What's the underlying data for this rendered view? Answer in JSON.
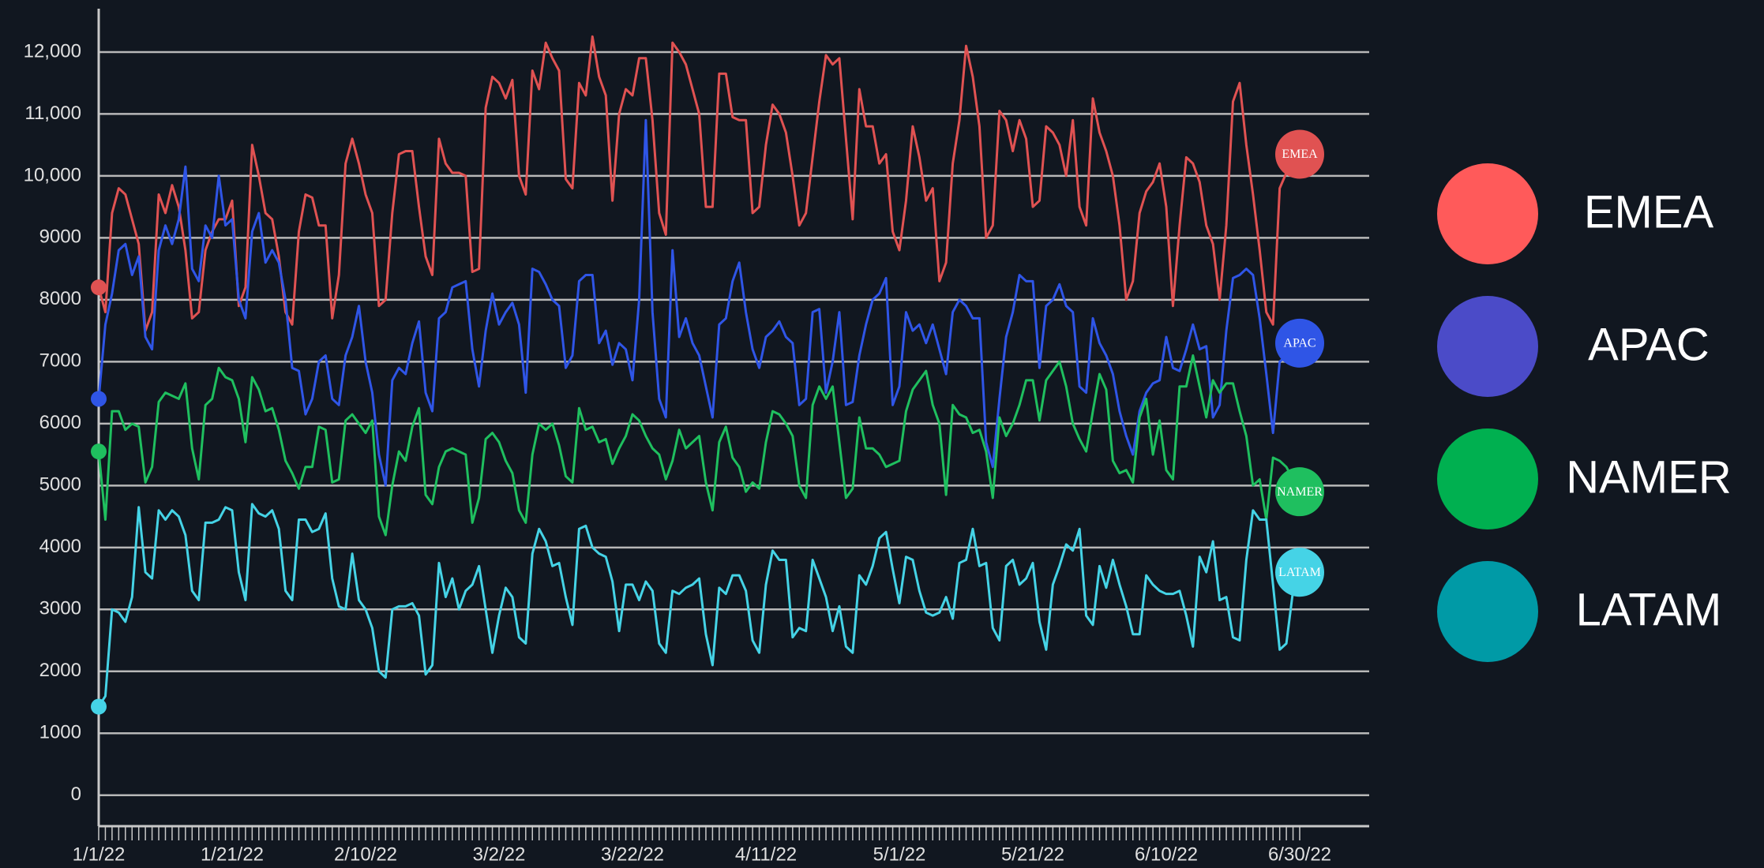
{
  "chart_data": {
    "type": "line",
    "x": [
      "1/1/22",
      "1/2/22",
      "1/3/22",
      "1/4/22",
      "1/5/22",
      "1/6/22",
      "1/7/22",
      "1/8/22",
      "1/9/22",
      "1/10/22",
      "1/11/22",
      "1/12/22",
      "1/13/22",
      "1/14/22",
      "1/15/22",
      "1/16/22",
      "1/17/22",
      "1/18/22",
      "1/19/22",
      "1/20/22",
      "1/21/22",
      "1/22/22",
      "1/23/22",
      "1/24/22",
      "1/25/22",
      "1/26/22",
      "1/27/22",
      "1/28/22",
      "1/29/22",
      "1/30/22",
      "1/31/22",
      "2/1/22",
      "2/2/22",
      "2/3/22",
      "2/4/22",
      "2/5/22",
      "2/6/22",
      "2/7/22",
      "2/8/22",
      "2/9/22",
      "2/10/22",
      "2/11/22",
      "2/12/22",
      "2/13/22",
      "2/14/22",
      "2/15/22",
      "2/16/22",
      "2/17/22",
      "2/18/22",
      "2/19/22",
      "2/20/22",
      "2/21/22",
      "2/22/22",
      "2/23/22",
      "2/24/22",
      "2/25/22",
      "2/26/22",
      "2/27/22",
      "2/28/22",
      "3/1/22",
      "3/2/22",
      "3/3/22",
      "3/4/22",
      "3/5/22",
      "3/6/22",
      "3/7/22",
      "3/8/22",
      "3/9/22",
      "3/10/22",
      "3/11/22",
      "3/12/22",
      "3/13/22",
      "3/14/22",
      "3/15/22",
      "3/16/22",
      "3/17/22",
      "3/18/22",
      "3/19/22",
      "3/20/22",
      "3/21/22",
      "3/22/22",
      "3/23/22",
      "3/24/22",
      "3/25/22",
      "3/26/22",
      "3/27/22",
      "3/28/22",
      "3/29/22",
      "3/30/22",
      "3/31/22",
      "4/1/22",
      "4/2/22",
      "4/3/22",
      "4/4/22",
      "4/5/22",
      "4/6/22",
      "4/7/22",
      "4/8/22",
      "4/9/22",
      "4/10/22",
      "4/11/22",
      "4/12/22",
      "4/13/22",
      "4/14/22",
      "4/15/22",
      "4/16/22",
      "4/17/22",
      "4/18/22",
      "4/19/22",
      "4/20/22",
      "4/21/22",
      "4/22/22",
      "4/23/22",
      "4/24/22",
      "4/25/22",
      "4/26/22",
      "4/27/22",
      "4/28/22",
      "4/29/22",
      "4/30/22",
      "5/1/22",
      "5/2/22",
      "5/3/22",
      "5/4/22",
      "5/5/22",
      "5/6/22",
      "5/7/22",
      "5/8/22",
      "5/9/22",
      "5/10/22",
      "5/11/22",
      "5/12/22",
      "5/13/22",
      "5/14/22",
      "5/15/22",
      "5/16/22",
      "5/17/22",
      "5/18/22",
      "5/19/22",
      "5/20/22",
      "5/21/22",
      "5/22/22",
      "5/23/22",
      "5/24/22",
      "5/25/22",
      "5/26/22",
      "5/27/22",
      "5/28/22",
      "5/29/22",
      "5/30/22",
      "5/31/22",
      "6/1/22",
      "6/2/22",
      "6/3/22",
      "6/4/22",
      "6/5/22",
      "6/6/22",
      "6/7/22",
      "6/8/22",
      "6/9/22",
      "6/10/22",
      "6/11/22",
      "6/12/22",
      "6/13/22",
      "6/14/22",
      "6/15/22",
      "6/16/22",
      "6/17/22",
      "6/18/22",
      "6/19/22",
      "6/20/22",
      "6/21/22",
      "6/22/22",
      "6/23/22",
      "6/24/22",
      "6/25/22",
      "6/26/22",
      "6/27/22",
      "6/28/22",
      "6/29/22",
      "6/30/22"
    ],
    "xticks": [
      "1/1/22",
      "1/21/22",
      "2/10/22",
      "3/2/22",
      "3/22/22",
      "4/11/22",
      "5/1/22",
      "5/21/22",
      "6/10/22",
      "6/30/22"
    ],
    "ylim": [
      -500,
      12700
    ],
    "yticks": [
      0,
      1000,
      2000,
      3000,
      4000,
      5000,
      6000,
      7000,
      8000,
      9000,
      {
        "value": 10000,
        "label": "10,000"
      },
      {
        "value": 11000,
        "label": "11,000"
      },
      {
        "value": 12000,
        "label": "12,000"
      }
    ],
    "grid": true,
    "legend": "right",
    "series": [
      {
        "name": "EMEA",
        "color": "#e05252",
        "legend_color": "#ff5a5a",
        "values": [
          8200,
          7800,
          9400,
          9800,
          9700,
          9300,
          8900,
          7500,
          7800,
          9700,
          9400,
          9850,
          9500,
          8800,
          7700,
          7800,
          8800,
          9100,
          9300,
          9300,
          9600,
          7900,
          8200,
          10500,
          10000,
          9400,
          9300,
          8700,
          7800,
          7600,
          9100,
          9700,
          9650,
          9200,
          9200,
          7700,
          8400,
          10200,
          10600,
          10200,
          9700,
          9400,
          7900,
          8000,
          9400,
          10350,
          10400,
          10400,
          9500,
          8700,
          8400,
          10600,
          10200,
          10050,
          10050,
          10000,
          8450,
          8500,
          11100,
          11600,
          11500,
          11250,
          11550,
          10000,
          9700,
          11700,
          11400,
          12150,
          11900,
          11700,
          9950,
          9800,
          11500,
          11300,
          12250,
          11600,
          11300,
          9600,
          11000,
          11400,
          11300,
          11900,
          11900,
          10900,
          9400,
          9050,
          12150,
          12000,
          11800,
          11400,
          11000,
          9500,
          9500,
          11650,
          11650,
          10950,
          10900,
          10900,
          9400,
          9500,
          10500,
          11150,
          11000,
          10700,
          10000,
          9200,
          9400,
          10300,
          11200,
          11950,
          11800,
          11900,
          10600,
          9300,
          11400,
          10800,
          10800,
          10200,
          10350,
          9100,
          8800,
          9600,
          10800,
          10300,
          9600,
          9800,
          8300,
          8600,
          10200,
          10900,
          12100,
          11600,
          10800,
          9000,
          9200,
          11050,
          10900,
          10400,
          10900,
          10600,
          9500,
          9600,
          10800,
          10700,
          10500,
          10000,
          10900,
          9500,
          9200,
          11250,
          10700,
          10400,
          10000,
          9200,
          8000,
          8300,
          9400,
          9750,
          9900,
          10200,
          9500,
          7900,
          9200,
          10300,
          10200,
          9900,
          9200,
          8900,
          8000,
          9200,
          11200,
          11500,
          10500,
          9700,
          8800,
          7800,
          7600,
          9800,
          10050,
          10200,
          10350
        ]
      },
      {
        "name": "APAC",
        "color": "#2f55e6",
        "legend_color": "#4b4bc8",
        "values": [
          6400,
          7600,
          8100,
          8800,
          8900,
          8400,
          8700,
          7400,
          7200,
          8800,
          9200,
          8900,
          9300,
          10150,
          8500,
          8300,
          9200,
          9000,
          10000,
          9200,
          9300,
          8000,
          7700,
          9100,
          9400,
          8600,
          8800,
          8600,
          8000,
          6900,
          6850,
          6150,
          6400,
          7000,
          7100,
          6400,
          6300,
          7100,
          7400,
          7900,
          7000,
          6500,
          5500,
          5000,
          6700,
          6900,
          6800,
          7300,
          7650,
          6500,
          6200,
          7700,
          7800,
          8200,
          8250,
          8300,
          7200,
          6600,
          7500,
          8100,
          7600,
          7800,
          7950,
          7600,
          6500,
          8500,
          8450,
          8250,
          8000,
          7900,
          6900,
          7100,
          8300,
          8400,
          8400,
          7300,
          7500,
          6950,
          7300,
          7200,
          6700,
          8000,
          10900,
          7800,
          6400,
          6100,
          8800,
          7400,
          7700,
          7300,
          7100,
          6600,
          6100,
          7600,
          7700,
          8300,
          8600,
          7800,
          7200,
          6900,
          7400,
          7500,
          7650,
          7400,
          7300,
          6300,
          6400,
          7800,
          7850,
          6500,
          7000,
          7800,
          6300,
          6350,
          7100,
          7600,
          8000,
          8100,
          8350,
          6300,
          6600,
          7800,
          7500,
          7600,
          7300,
          7600,
          7200,
          6800,
          7800,
          8000,
          7900,
          7700,
          7700,
          5700,
          5300,
          6400,
          7400,
          7800,
          8400,
          8300,
          8300,
          6900,
          7900,
          8000,
          8250,
          7900,
          7800,
          6600,
          6500,
          7700,
          7300,
          7100,
          6800,
          6200,
          5800,
          5500,
          6200,
          6500,
          6650,
          6700,
          7400,
          6900,
          6850,
          7200,
          7600,
          7200,
          7250,
          6100,
          6300,
          7500,
          8350,
          8400,
          8500,
          8400,
          7700,
          6800,
          5850,
          7000,
          7100,
          7200,
          7300
        ]
      },
      {
        "name": "NAMER",
        "color": "#1fbf5f",
        "legend_color": "#00b050",
        "values": [
          5550,
          4450,
          6200,
          6200,
          5900,
          6000,
          5950,
          5050,
          5300,
          6350,
          6500,
          6450,
          6400,
          6650,
          5600,
          5100,
          6300,
          6400,
          6900,
          6750,
          6700,
          6400,
          5700,
          6750,
          6550,
          6200,
          6250,
          5900,
          5400,
          5200,
          4950,
          5300,
          5300,
          5950,
          5900,
          5050,
          5100,
          6050,
          6150,
          6000,
          5850,
          6050,
          4500,
          4200,
          5000,
          5550,
          5400,
          5950,
          6250,
          4850,
          4700,
          5300,
          5550,
          5600,
          5550,
          5500,
          4400,
          4800,
          5750,
          5850,
          5700,
          5400,
          5200,
          4600,
          4400,
          5500,
          6000,
          5900,
          6000,
          5650,
          5150,
          5050,
          6250,
          5900,
          5950,
          5700,
          5750,
          5350,
          5600,
          5800,
          6150,
          6050,
          5800,
          5600,
          5500,
          5100,
          5400,
          5900,
          5600,
          5700,
          5800,
          5050,
          4600,
          5700,
          5950,
          5450,
          5300,
          4900,
          5050,
          4950,
          5700,
          6200,
          6150,
          6000,
          5800,
          5000,
          4800,
          6300,
          6600,
          6400,
          6600,
          5700,
          4800,
          4950,
          6100,
          5600,
          5600,
          5500,
          5300,
          5350,
          5400,
          6200,
          6550,
          6700,
          6850,
          6300,
          6000,
          4850,
          6300,
          6150,
          6100,
          5850,
          5900,
          5550,
          4800,
          6100,
          5800,
          6000,
          6300,
          6700,
          6700,
          6050,
          6700,
          6850,
          7000,
          6600,
          6000,
          5750,
          5550,
          6200,
          6800,
          6550,
          5400,
          5200,
          5250,
          5050,
          6100,
          6400,
          5500,
          6050,
          5250,
          5100,
          6600,
          6600,
          7100,
          6600,
          6100,
          6700,
          6500,
          6650,
          6650,
          6200,
          5800,
          5000,
          5100,
          4450,
          5450,
          5400,
          5300,
          5100,
          4900
        ]
      },
      {
        "name": "LATAM",
        "color": "#45d3e6",
        "legend_color": "#009aa6",
        "values": [
          1430,
          1600,
          3000,
          2950,
          2800,
          3200,
          4650,
          3600,
          3500,
          4600,
          4450,
          4600,
          4500,
          4200,
          3300,
          3150,
          4400,
          4400,
          4450,
          4650,
          4600,
          3600,
          3150,
          4700,
          4550,
          4500,
          4600,
          4300,
          3300,
          3150,
          4450,
          4450,
          4250,
          4300,
          4550,
          3500,
          3050,
          3000,
          3900,
          3150,
          3000,
          2700,
          2000,
          1900,
          3000,
          3050,
          3050,
          3100,
          2900,
          1950,
          2100,
          3750,
          3200,
          3500,
          3000,
          3300,
          3400,
          3700,
          3000,
          2300,
          2900,
          3350,
          3200,
          2550,
          2450,
          3900,
          4300,
          4100,
          3700,
          3750,
          3200,
          2750,
          4300,
          4350,
          4000,
          3900,
          3850,
          3450,
          2650,
          3400,
          3400,
          3150,
          3450,
          3300,
          2450,
          2300,
          3300,
          3250,
          3350,
          3400,
          3500,
          2600,
          2100,
          3350,
          3250,
          3550,
          3550,
          3300,
          2500,
          2300,
          3400,
          3950,
          3800,
          3800,
          2550,
          2700,
          2650,
          3800,
          3500,
          3200,
          2650,
          3050,
          2400,
          2300,
          3550,
          3400,
          3700,
          4150,
          4250,
          3650,
          3100,
          3850,
          3800,
          3300,
          2950,
          2900,
          2950,
          3200,
          2850,
          3750,
          3800,
          4300,
          3700,
          3750,
          2700,
          2500,
          3700,
          3800,
          3400,
          3500,
          3750,
          2800,
          2350,
          3400,
          3700,
          4050,
          3950,
          4300,
          2900,
          2750,
          3700,
          3350,
          3800,
          3400,
          3050,
          2600,
          2600,
          3550,
          3400,
          3300,
          3250,
          3250,
          3300,
          2900,
          2400,
          3850,
          3600,
          4100,
          3150,
          3200,
          2550,
          2500,
          3800,
          4600,
          4450,
          4450,
          3400,
          2350,
          2450,
          3300,
          3600
        ]
      }
    ]
  }
}
